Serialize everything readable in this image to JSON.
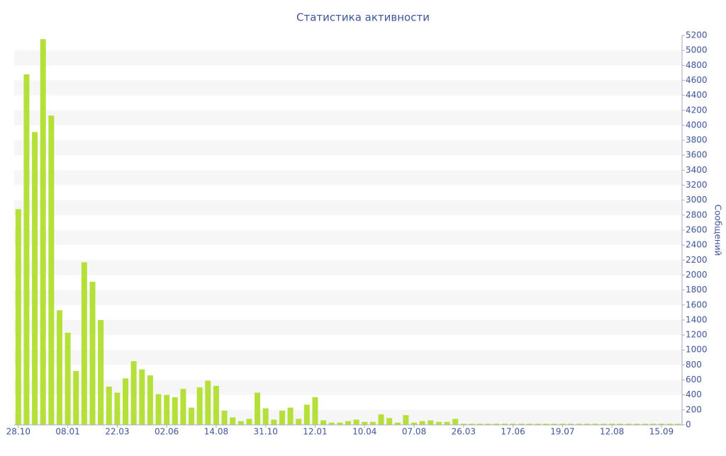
{
  "chart_data": {
    "type": "bar",
    "title": "Статистика активности",
    "y_axis_label": "Сообщений",
    "categories": [
      "28.10",
      null,
      null,
      null,
      null,
      null,
      "08.01",
      null,
      null,
      null,
      null,
      null,
      "22.03",
      null,
      null,
      null,
      null,
      null,
      "02.06",
      null,
      null,
      null,
      null,
      null,
      "14.08",
      null,
      null,
      null,
      null,
      null,
      "31.10",
      null,
      null,
      null,
      null,
      null,
      "12.01",
      null,
      null,
      null,
      null,
      null,
      "10.04",
      null,
      null,
      null,
      null,
      null,
      "07.08",
      null,
      null,
      null,
      null,
      null,
      "26.03",
      null,
      null,
      null,
      null,
      null,
      "17.06",
      null,
      null,
      null,
      null,
      null,
      "19.07",
      null,
      null,
      null,
      null,
      null,
      "12.08",
      null,
      null,
      null,
      null,
      null,
      "15.09",
      null,
      null
    ],
    "values": [
      2880,
      4680,
      3910,
      5150,
      4130,
      1530,
      1230,
      720,
      2170,
      1910,
      1400,
      510,
      430,
      620,
      850,
      740,
      660,
      410,
      400,
      370,
      480,
      230,
      500,
      590,
      520,
      190,
      100,
      50,
      80,
      430,
      220,
      70,
      190,
      230,
      80,
      270,
      370,
      60,
      30,
      30,
      50,
      70,
      40,
      40,
      140,
      90,
      30,
      130,
      30,
      50,
      60,
      40,
      40,
      80,
      15,
      15,
      15,
      15,
      15,
      15,
      15,
      15,
      15,
      15,
      15,
      15,
      15,
      15,
      15,
      15,
      15,
      15,
      15,
      15,
      15,
      15,
      15,
      15,
      15,
      15,
      15
    ],
    "color": "#b5e03a",
    "ylim": [
      0,
      5200
    ],
    "yticks": [
      0,
      200,
      400,
      600,
      800,
      1000,
      1200,
      1400,
      1600,
      1800,
      2000,
      2200,
      2400,
      2600,
      2800,
      3000,
      3200,
      3400,
      3600,
      3800,
      4000,
      4200,
      4400,
      4600,
      4800,
      5000,
      5200
    ],
    "grid": true
  }
}
